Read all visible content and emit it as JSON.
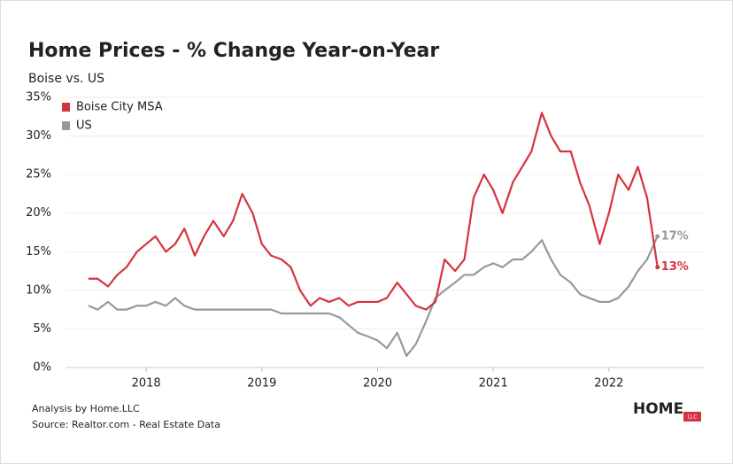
{
  "chart_data": {
    "type": "line",
    "title": "Home Prices - % Change Year-on-Year",
    "subtitle": "Boise vs. US",
    "x": [
      2017.5,
      2017.58,
      2017.67,
      2017.75,
      2017.83,
      2017.92,
      2018.0,
      2018.08,
      2018.17,
      2018.25,
      2018.33,
      2018.42,
      2018.5,
      2018.58,
      2018.67,
      2018.75,
      2018.83,
      2018.92,
      2019.0,
      2019.08,
      2019.17,
      2019.25,
      2019.33,
      2019.42,
      2019.5,
      2019.58,
      2019.67,
      2019.75,
      2019.83,
      2019.92,
      2020.0,
      2020.08,
      2020.17,
      2020.25,
      2020.33,
      2020.42,
      2020.5,
      2020.58,
      2020.67,
      2020.75,
      2020.83,
      2020.92,
      2021.0,
      2021.08,
      2021.17,
      2021.25,
      2021.33,
      2021.42,
      2021.5,
      2021.58,
      2021.67,
      2021.75,
      2021.83,
      2021.92,
      2022.0,
      2022.08,
      2022.17,
      2022.25,
      2022.33,
      2022.42
    ],
    "series": [
      {
        "name": "Boise City MSA",
        "color": "#d4343f",
        "values": [
          11.5,
          11.5,
          10.5,
          12,
          13,
          15,
          16,
          17,
          15,
          16,
          18,
          14.5,
          17,
          19,
          17,
          19,
          22.5,
          20,
          16,
          14.5,
          14,
          13,
          10,
          8,
          9,
          8.5,
          9,
          8,
          8.5,
          8.5,
          8.5,
          9,
          11,
          9.5,
          8,
          7.5,
          8.5,
          14,
          12.5,
          14,
          22,
          25,
          23,
          20,
          24,
          26,
          28,
          33,
          30,
          28,
          28,
          24,
          21,
          16,
          20,
          25,
          23,
          26,
          22,
          13
        ],
        "value_labels": [
          null,
          null,
          null,
          null,
          null,
          null,
          null,
          null,
          null,
          null,
          null,
          null,
          null,
          null,
          null,
          null,
          null,
          null,
          null,
          null,
          null,
          null,
          null,
          null,
          null,
          null,
          null,
          null,
          null,
          null,
          null,
          null,
          null,
          null,
          null,
          null,
          null,
          null,
          null,
          null,
          null,
          null,
          null,
          null,
          null,
          null,
          null,
          null,
          null,
          null,
          null,
          null,
          null,
          null,
          null,
          null,
          null,
          null,
          null,
          "13%"
        ]
      },
      {
        "name": "US",
        "color": "#949a9a",
        "values": [
          8,
          7.5,
          8.5,
          7.5,
          7.5,
          8,
          8,
          8.5,
          8,
          9,
          8,
          7.5,
          7.5,
          7.5,
          7.5,
          7.5,
          7.5,
          7.5,
          7.5,
          7.5,
          7,
          7,
          7,
          7,
          7,
          7,
          6.5,
          5.5,
          4.5,
          4,
          3.5,
          2.5,
          4.5,
          1.5,
          3,
          6,
          9,
          10,
          11,
          12,
          12,
          13,
          13.5,
          13,
          14,
          14,
          15,
          16.5,
          14,
          12,
          11,
          9.5,
          9,
          8.5,
          8.5,
          9,
          10.5,
          12.5,
          14,
          17
        ],
        "value_labels": [
          null,
          null,
          null,
          null,
          null,
          null,
          null,
          null,
          null,
          null,
          null,
          null,
          null,
          null,
          null,
          null,
          null,
          null,
          null,
          null,
          null,
          null,
          null,
          null,
          null,
          null,
          null,
          null,
          null,
          null,
          null,
          null,
          null,
          null,
          null,
          null,
          null,
          null,
          null,
          null,
          null,
          null,
          null,
          null,
          null,
          null,
          null,
          null,
          null,
          null,
          null,
          null,
          null,
          null,
          null,
          null,
          null,
          null,
          null,
          "17%"
        ]
      }
    ],
    "xlim": [
      2017.31,
      2022.82
    ],
    "xticks": [
      2018,
      2019,
      2020,
      2021,
      2022
    ],
    "ylim": [
      0,
      35
    ],
    "yticks": [
      {
        "value": 0,
        "label": "0%"
      },
      {
        "value": 5,
        "label": "5%"
      },
      {
        "value": 10,
        "label": "10%"
      },
      {
        "value": 15,
        "label": "15%"
      },
      {
        "value": 20,
        "label": "20%"
      },
      {
        "value": 25,
        "label": "25%"
      },
      {
        "value": 30,
        "label": "30%"
      },
      {
        "value": 35,
        "label": "35%"
      }
    ],
    "grid": true,
    "legend": "top-left",
    "notes": [
      "Analysis by Home.LLC",
      "Source: Realtor.com - Real Estate Data"
    ],
    "logo": {
      "text": "HOME",
      "badge": "LLC"
    }
  }
}
